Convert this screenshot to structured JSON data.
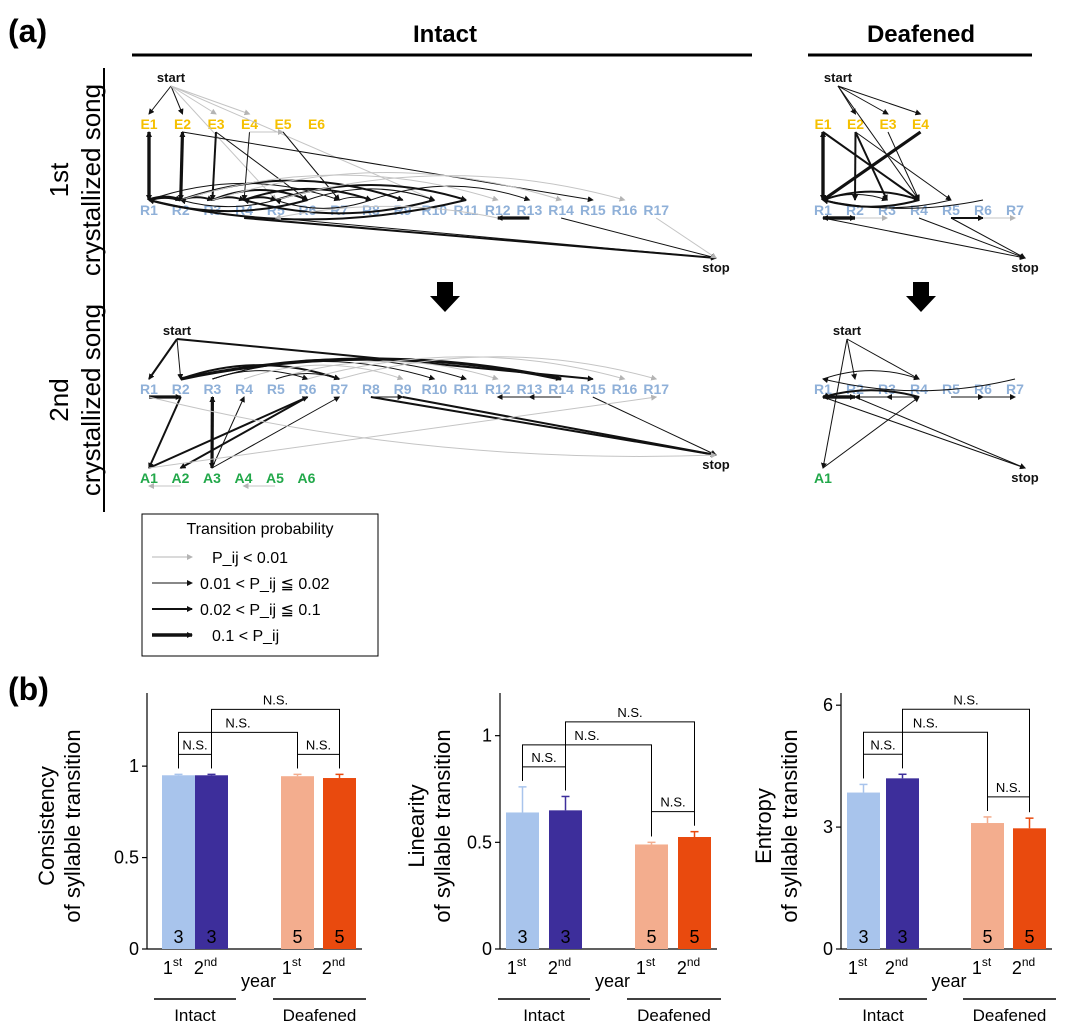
{
  "panel_a": {
    "label": "(a)",
    "col_intact": "Intact",
    "col_deafened": "Deafened",
    "row1": [
      "1st",
      "crystallized song"
    ],
    "row2": [
      "2nd",
      "crystallized song"
    ],
    "start": "start",
    "stop": "stop",
    "intact_r": [
      "R1",
      "R2",
      "R3",
      "R4",
      "R5",
      "R6",
      "R7",
      "R8",
      "R9",
      "R10",
      "R11",
      "R12",
      "R13",
      "R14",
      "R15",
      "R16",
      "R17"
    ],
    "intact_e": [
      "E1",
      "E2",
      "E3",
      "E4",
      "E5",
      "E6"
    ],
    "intact_a": [
      "A1",
      "A2",
      "A3",
      "A4",
      "A5",
      "A6"
    ],
    "deaf_r": [
      "R1",
      "R2",
      "R3",
      "R4",
      "R5",
      "R6",
      "R7"
    ],
    "deaf_e": [
      "E1",
      "E2",
      "E3",
      "E4"
    ],
    "deaf_a": [
      "A1"
    ],
    "legend": {
      "title": "Transition probability",
      "rows": [
        "P_ij < 0.01",
        "0.01 < P_ij ≦ 0.02",
        "0.02 < P_ij ≦ 0.1",
        "0.1 < P_ij"
      ]
    },
    "colors": {
      "repeat": "#8fb0d8",
      "early": "#f5c000",
      "added": "#22a84a"
    }
  },
  "panel_b_label": "(b)",
  "chart_data": [
    {
      "type": "bar",
      "ylabel": [
        "Consistency",
        "of syllable transition"
      ],
      "ylim": [
        0,
        1.4
      ],
      "yticks": [
        0,
        0.5,
        1
      ],
      "categories": [
        "1st",
        "2nd",
        "1st",
        "2nd"
      ],
      "groups": [
        "Intact",
        "Deafened"
      ],
      "xlabel": "year",
      "values": [
        0.95,
        0.95,
        0.945,
        0.935
      ],
      "errors": [
        0.005,
        0.005,
        0.01,
        0.02
      ],
      "n": [
        "3",
        "3",
        "5",
        "5"
      ],
      "colors": [
        "#a8c4ec",
        "#3d2e9b",
        "#f3ad8e",
        "#e94a0e"
      ],
      "annotations": [
        "N.S.",
        "N.S.",
        "N.S.",
        "N.S."
      ]
    },
    {
      "type": "bar",
      "ylabel": [
        "Linearity",
        "of syllable transition"
      ],
      "ylim": [
        0,
        1.2
      ],
      "yticks": [
        0,
        0.5,
        1
      ],
      "categories": [
        "1st",
        "2nd",
        "1st",
        "2nd"
      ],
      "groups": [
        "Intact",
        "Deafened"
      ],
      "xlabel": "year",
      "values": [
        0.64,
        0.65,
        0.49,
        0.525
      ],
      "errors": [
        0.12,
        0.065,
        0.01,
        0.025
      ],
      "n": [
        "3",
        "3",
        "5",
        "5"
      ],
      "colors": [
        "#a8c4ec",
        "#3d2e9b",
        "#f3ad8e",
        "#e94a0e"
      ],
      "annotations": [
        "N.S.",
        "N.S.",
        "N.S.",
        "N.S."
      ]
    },
    {
      "type": "bar",
      "ylabel": [
        "Entropy",
        "of syllable transition"
      ],
      "ylim": [
        0,
        6.3
      ],
      "yticks": [
        0,
        3,
        6
      ],
      "categories": [
        "1st",
        "2nd",
        "1st",
        "2nd"
      ],
      "groups": [
        "Intact",
        "Deafened"
      ],
      "xlabel": "year",
      "values": [
        3.85,
        4.2,
        3.1,
        2.97
      ],
      "errors": [
        0.2,
        0.1,
        0.15,
        0.25
      ],
      "n": [
        "3",
        "3",
        "5",
        "5"
      ],
      "colors": [
        "#a8c4ec",
        "#3d2e9b",
        "#f3ad8e",
        "#e94a0e"
      ],
      "annotations": [
        "N.S.",
        "N.S.",
        "N.S.",
        "N.S."
      ]
    }
  ]
}
